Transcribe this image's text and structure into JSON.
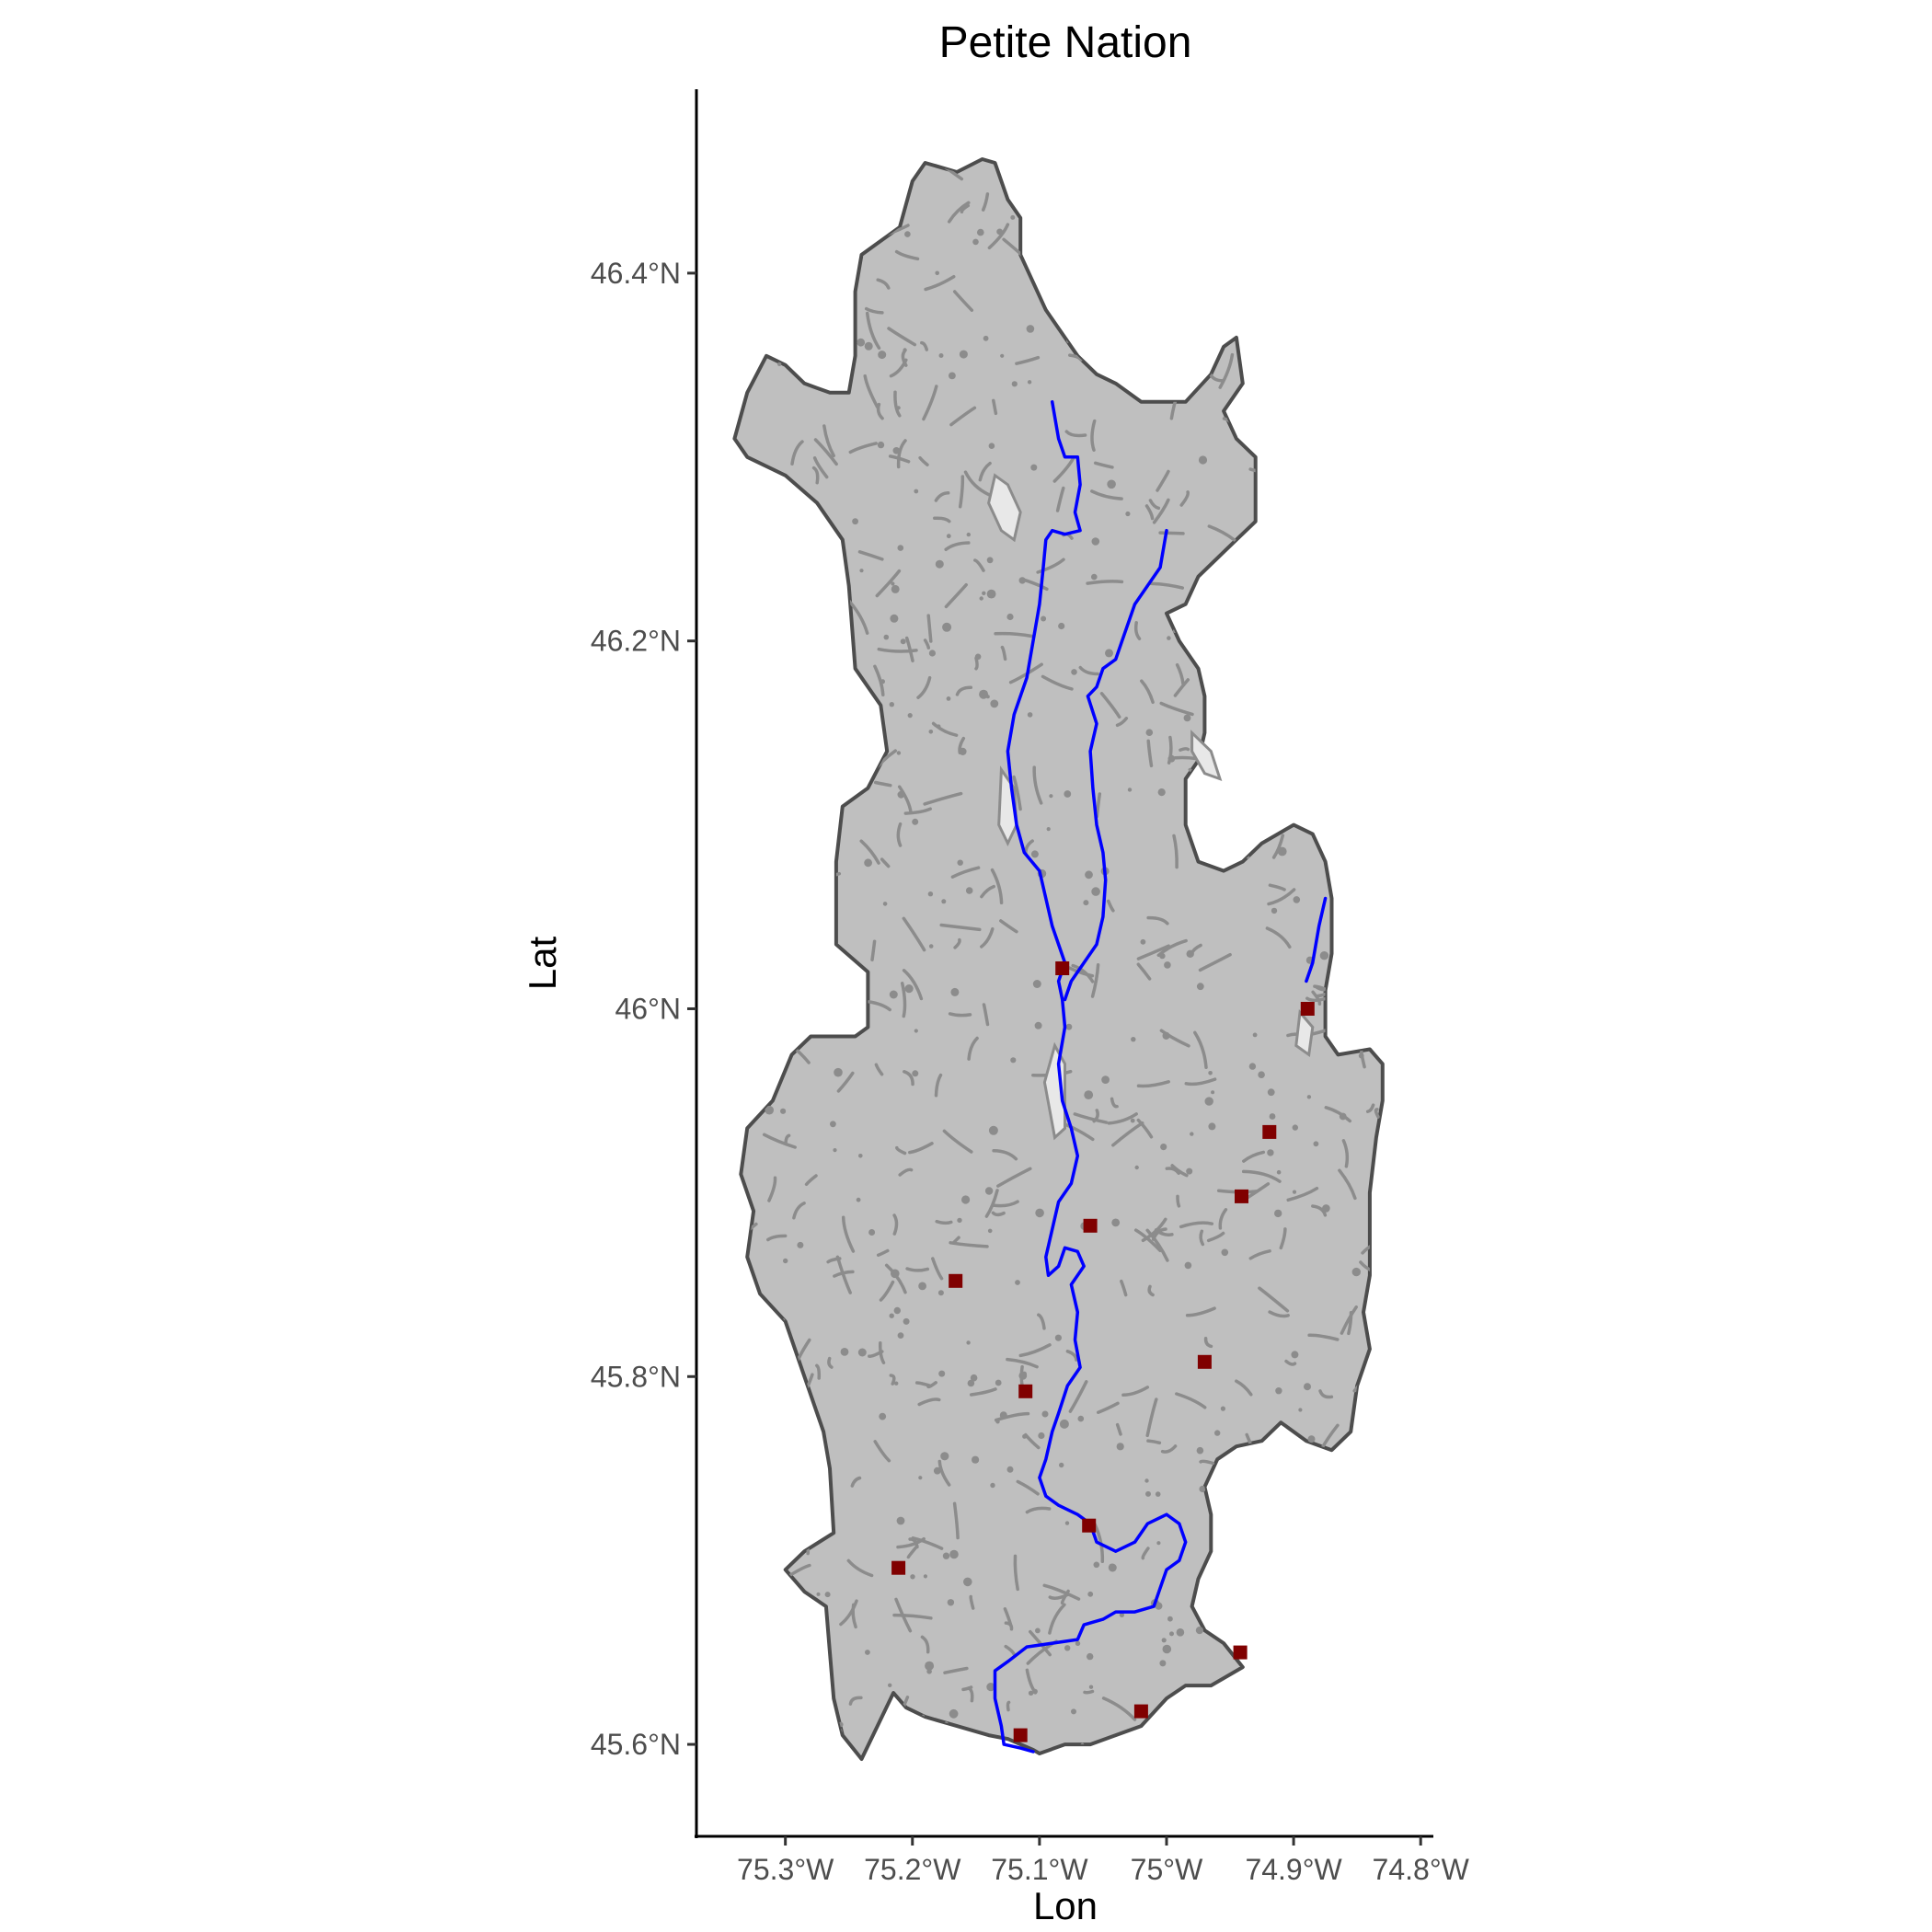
{
  "title": "Petite Nation",
  "xlabel": "Lon",
  "ylabel": "Lat",
  "colors": {
    "basin_fill": "#bfbfbf",
    "basin_outline": "#4d4d4d",
    "streams": "#8c8c8c",
    "river": "#0000ff",
    "stations": "#800000"
  },
  "x_ticks": [
    {
      "value": -75.3,
      "label": "75.3°W"
    },
    {
      "value": -75.2,
      "label": "75.2°W"
    },
    {
      "value": -75.1,
      "label": "75.1°W"
    },
    {
      "value": -75.0,
      "label": "75°W"
    },
    {
      "value": -74.9,
      "label": "74.9°W"
    },
    {
      "value": -74.8,
      "label": "74.8°W"
    }
  ],
  "y_ticks": [
    {
      "value": 45.6,
      "label": "45.6°N"
    },
    {
      "value": 45.8,
      "label": "45.8°N"
    },
    {
      "value": 46.0,
      "label": "46°N"
    },
    {
      "value": 46.2,
      "label": "46.2°N"
    },
    {
      "value": 46.4,
      "label": "46.4°N"
    }
  ],
  "chart_data": {
    "type": "map",
    "xlim": [
      -75.37,
      -74.79
    ],
    "ylim": [
      45.55,
      46.5
    ],
    "grid": false,
    "basin_outline": [
      [
        -75.105,
        45.597
      ],
      [
        -75.125,
        45.603
      ],
      [
        -75.14,
        45.605
      ],
      [
        -75.165,
        45.61
      ],
      [
        -75.19,
        45.615
      ],
      [
        -75.205,
        45.62
      ],
      [
        -75.215,
        45.628
      ],
      [
        -75.24,
        45.592
      ],
      [
        -75.255,
        45.605
      ],
      [
        -75.262,
        45.625
      ],
      [
        -75.265,
        45.65
      ],
      [
        -75.268,
        45.675
      ],
      [
        -75.285,
        45.683
      ],
      [
        -75.3,
        45.695
      ],
      [
        -75.285,
        45.705
      ],
      [
        -75.262,
        45.715
      ],
      [
        -75.265,
        45.75
      ],
      [
        -75.27,
        45.77
      ],
      [
        -75.285,
        45.8
      ],
      [
        -75.3,
        45.83
      ],
      [
        -75.32,
        45.845
      ],
      [
        -75.33,
        45.865
      ],
      [
        -75.325,
        45.89
      ],
      [
        -75.335,
        45.91
      ],
      [
        -75.33,
        45.935
      ],
      [
        -75.31,
        45.95
      ],
      [
        -75.295,
        45.975
      ],
      [
        -75.28,
        45.985
      ],
      [
        -75.245,
        45.985
      ],
      [
        -75.235,
        45.99
      ],
      [
        -75.235,
        46.02
      ],
      [
        -75.26,
        46.035
      ],
      [
        -75.26,
        46.08
      ],
      [
        -75.255,
        46.11
      ],
      [
        -75.235,
        46.12
      ],
      [
        -75.22,
        46.14
      ],
      [
        -75.225,
        46.165
      ],
      [
        -75.245,
        46.185
      ],
      [
        -75.25,
        46.23
      ],
      [
        -75.255,
        46.255
      ],
      [
        -75.275,
        46.275
      ],
      [
        -75.3,
        46.29
      ],
      [
        -75.33,
        46.3
      ],
      [
        -75.34,
        46.31
      ],
      [
        -75.33,
        46.335
      ],
      [
        -75.315,
        46.355
      ],
      [
        -75.3,
        46.35
      ],
      [
        -75.285,
        46.34
      ],
      [
        -75.265,
        46.335
      ],
      [
        -75.25,
        46.335
      ],
      [
        -75.245,
        46.355
      ],
      [
        -75.245,
        46.39
      ],
      [
        -75.24,
        46.41
      ],
      [
        -75.21,
        46.425
      ],
      [
        -75.2,
        46.45
      ],
      [
        -75.19,
        46.46
      ],
      [
        -75.165,
        46.455
      ],
      [
        -75.145,
        46.462
      ],
      [
        -75.135,
        46.46
      ],
      [
        -75.125,
        46.44
      ],
      [
        -75.115,
        46.43
      ],
      [
        -75.115,
        46.41
      ],
      [
        -75.105,
        46.395
      ],
      [
        -75.095,
        46.38
      ],
      [
        -75.085,
        46.37
      ],
      [
        -75.07,
        46.355
      ],
      [
        -75.055,
        46.345
      ],
      [
        -75.04,
        46.34
      ],
      [
        -75.02,
        46.33
      ],
      [
        -75.0,
        46.33
      ],
      [
        -74.985,
        46.33
      ],
      [
        -74.965,
        46.345
      ],
      [
        -74.955,
        46.36
      ],
      [
        -74.945,
        46.365
      ],
      [
        -74.94,
        46.34
      ],
      [
        -74.955,
        46.325
      ],
      [
        -74.945,
        46.31
      ],
      [
        -74.93,
        46.3
      ],
      [
        -74.93,
        46.285
      ],
      [
        -74.93,
        46.265
      ],
      [
        -74.945,
        46.255
      ],
      [
        -74.96,
        46.245
      ],
      [
        -74.975,
        46.235
      ],
      [
        -74.985,
        46.22
      ],
      [
        -75.0,
        46.215
      ],
      [
        -74.99,
        46.2
      ],
      [
        -74.975,
        46.185
      ],
      [
        -74.97,
        46.17
      ],
      [
        -74.97,
        46.15
      ],
      [
        -74.975,
        46.135
      ],
      [
        -74.985,
        46.125
      ],
      [
        -74.985,
        46.1
      ],
      [
        -74.975,
        46.08
      ],
      [
        -74.955,
        46.075
      ],
      [
        -74.94,
        46.08
      ],
      [
        -74.925,
        46.09
      ],
      [
        -74.9,
        46.1
      ],
      [
        -74.885,
        46.095
      ],
      [
        -74.875,
        46.08
      ],
      [
        -74.87,
        46.06
      ],
      [
        -74.87,
        46.03
      ],
      [
        -74.875,
        46.01
      ],
      [
        -74.875,
        45.985
      ],
      [
        -74.865,
        45.975
      ],
      [
        -74.84,
        45.978
      ],
      [
        -74.83,
        45.97
      ],
      [
        -74.83,
        45.95
      ],
      [
        -74.835,
        45.93
      ],
      [
        -74.84,
        45.9
      ],
      [
        -74.84,
        45.875
      ],
      [
        -74.84,
        45.855
      ],
      [
        -74.845,
        45.835
      ],
      [
        -74.84,
        45.815
      ],
      [
        -74.85,
        45.795
      ],
      [
        -74.855,
        45.77
      ],
      [
        -74.87,
        45.76
      ],
      [
        -74.89,
        45.765
      ],
      [
        -74.91,
        45.775
      ],
      [
        -74.925,
        45.765
      ],
      [
        -74.945,
        45.762
      ],
      [
        -74.96,
        45.755
      ],
      [
        -74.97,
        45.74
      ],
      [
        -74.965,
        45.725
      ],
      [
        -74.965,
        45.705
      ],
      [
        -74.975,
        45.69
      ],
      [
        -74.98,
        45.675
      ],
      [
        -74.97,
        45.662
      ],
      [
        -74.955,
        45.655
      ],
      [
        -74.94,
        45.642
      ],
      [
        -74.965,
        45.632
      ],
      [
        -74.985,
        45.632
      ],
      [
        -75.0,
        45.625
      ],
      [
        -75.02,
        45.61
      ],
      [
        -75.04,
        45.605
      ],
      [
        -75.06,
        45.6
      ],
      [
        -75.08,
        45.6
      ],
      [
        -75.1,
        45.595
      ],
      [
        -75.105,
        45.597
      ]
    ],
    "rivers": [
      {
        "name": "",
        "coords": [
          [
            -75.09,
            46.33
          ],
          [
            -75.085,
            46.31
          ],
          [
            -75.08,
            46.3
          ],
          [
            -75.07,
            46.3
          ],
          [
            -75.068,
            46.285
          ],
          [
            -75.072,
            46.27
          ],
          [
            -75.068,
            46.26
          ],
          [
            -75.08,
            46.258
          ],
          [
            -75.09,
            46.26
          ],
          [
            -75.095,
            46.255
          ],
          [
            -75.097,
            46.24
          ],
          [
            -75.1,
            46.22
          ],
          [
            -75.105,
            46.2
          ],
          [
            -75.11,
            46.18
          ],
          [
            -75.12,
            46.16
          ],
          [
            -75.125,
            46.14
          ],
          [
            -75.122,
            46.12
          ],
          [
            -75.118,
            46.1
          ],
          [
            -75.112,
            46.085
          ],
          [
            -75.1,
            46.075
          ],
          [
            -75.095,
            46.06
          ],
          [
            -75.09,
            46.045
          ],
          [
            -75.085,
            46.035
          ],
          [
            -75.08,
            46.025
          ],
          [
            -75.085,
            46.015
          ],
          [
            -75.082,
            46.005
          ],
          [
            -75.08,
            45.99
          ],
          [
            -75.085,
            45.97
          ],
          [
            -75.082,
            45.95
          ],
          [
            -75.075,
            45.935
          ],
          [
            -75.07,
            45.92
          ],
          [
            -75.075,
            45.905
          ],
          [
            -75.085,
            45.895
          ],
          [
            -75.09,
            45.88
          ],
          [
            -75.095,
            45.865
          ],
          [
            -75.093,
            45.855
          ],
          [
            -75.085,
            45.86
          ],
          [
            -75.08,
            45.87
          ],
          [
            -75.07,
            45.868
          ],
          [
            -75.065,
            45.86
          ],
          [
            -75.075,
            45.85
          ],
          [
            -75.07,
            45.835
          ],
          [
            -75.072,
            45.82
          ],
          [
            -75.068,
            45.805
          ],
          [
            -75.078,
            45.795
          ],
          [
            -75.085,
            45.78
          ],
          [
            -75.09,
            45.77
          ],
          [
            -75.095,
            45.755
          ],
          [
            -75.1,
            45.745
          ],
          [
            -75.095,
            45.735
          ],
          [
            -75.085,
            45.73
          ],
          [
            -75.07,
            45.725
          ],
          [
            -75.06,
            45.72
          ],
          [
            -75.055,
            45.71
          ],
          [
            -75.04,
            45.705
          ],
          [
            -75.025,
            45.71
          ],
          [
            -75.015,
            45.72
          ],
          [
            -75.0,
            45.725
          ],
          [
            -74.99,
            45.72
          ],
          [
            -74.985,
            45.71
          ],
          [
            -74.99,
            45.7
          ],
          [
            -75.0,
            45.695
          ],
          [
            -75.005,
            45.685
          ],
          [
            -75.01,
            45.675
          ],
          [
            -75.025,
            45.672
          ],
          [
            -75.04,
            45.672
          ],
          [
            -75.05,
            45.668
          ],
          [
            -75.065,
            45.665
          ],
          [
            -75.07,
            45.657
          ],
          [
            -75.09,
            45.655
          ],
          [
            -75.11,
            45.653
          ],
          [
            -75.125,
            45.645
          ],
          [
            -75.135,
            45.64
          ],
          [
            -75.135,
            45.625
          ],
          [
            -75.13,
            45.61
          ],
          [
            -75.128,
            45.6
          ],
          [
            -75.115,
            45.598
          ],
          [
            -75.105,
            45.596
          ]
        ]
      },
      {
        "name": "",
        "coords": [
          [
            -75.0,
            46.26
          ],
          [
            -75.005,
            46.24
          ],
          [
            -75.015,
            46.23
          ],
          [
            -75.025,
            46.22
          ],
          [
            -75.035,
            46.2
          ],
          [
            -75.04,
            46.19
          ],
          [
            -75.05,
            46.185
          ],
          [
            -75.055,
            46.175
          ],
          [
            -75.062,
            46.17
          ],
          [
            -75.055,
            46.155
          ],
          [
            -75.06,
            46.14
          ],
          [
            -75.058,
            46.12
          ],
          [
            -75.055,
            46.1
          ],
          [
            -75.05,
            46.085
          ],
          [
            -75.048,
            46.07
          ],
          [
            -75.05,
            46.05
          ],
          [
            -75.055,
            46.035
          ],
          [
            -75.065,
            46.025
          ],
          [
            -75.075,
            46.015
          ],
          [
            -75.08,
            46.005
          ]
        ]
      },
      {
        "name": "",
        "coords": [
          [
            -74.875,
            46.06
          ],
          [
            -74.88,
            46.045
          ],
          [
            -74.885,
            46.025
          ],
          [
            -74.89,
            46.015
          ]
        ]
      }
    ],
    "lakes": [
      [
        [
          -75.135,
          46.29
        ],
        [
          -75.125,
          46.285
        ],
        [
          -75.115,
          46.27
        ],
        [
          -75.12,
          46.255
        ],
        [
          -75.13,
          46.26
        ],
        [
          -75.14,
          46.275
        ]
      ],
      [
        [
          -75.13,
          46.13
        ],
        [
          -75.12,
          46.12
        ],
        [
          -75.118,
          46.1
        ],
        [
          -75.125,
          46.09
        ],
        [
          -75.132,
          46.1
        ]
      ],
      [
        [
          -75.088,
          45.98
        ],
        [
          -75.08,
          45.97
        ],
        [
          -75.08,
          45.935
        ],
        [
          -75.088,
          45.93
        ],
        [
          -75.096,
          45.96
        ]
      ],
      [
        [
          -74.98,
          46.15
        ],
        [
          -74.965,
          46.14
        ],
        [
          -74.958,
          46.125
        ],
        [
          -74.97,
          46.128
        ],
        [
          -74.98,
          46.14
        ]
      ],
      [
        [
          -74.895,
          45.998
        ],
        [
          -74.885,
          45.99
        ],
        [
          -74.888,
          45.975
        ],
        [
          -74.898,
          45.98
        ]
      ]
    ],
    "stations": [
      [
        -75.082,
        46.022
      ],
      [
        -74.889,
        46.0
      ],
      [
        -74.919,
        45.933
      ],
      [
        -74.941,
        45.898
      ],
      [
        -75.06,
        45.882
      ],
      [
        -75.166,
        45.852
      ],
      [
        -74.97,
        45.808
      ],
      [
        -75.111,
        45.792
      ],
      [
        -75.061,
        45.719
      ],
      [
        -75.211,
        45.696
      ],
      [
        -74.942,
        45.65
      ],
      [
        -75.02,
        45.618
      ],
      [
        -75.115,
        45.605
      ]
    ]
  }
}
